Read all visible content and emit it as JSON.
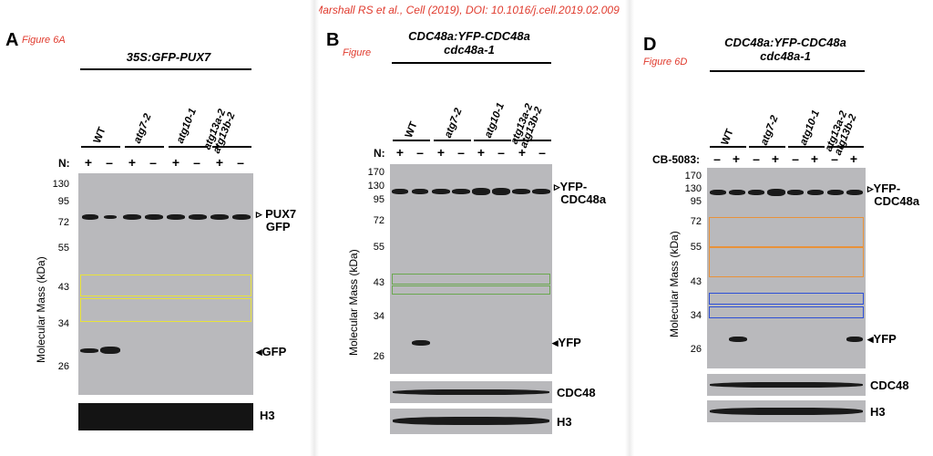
{
  "citation": "Marshall RS et al., Cell (2019), DOI: 10.1016/j.cell.2019.02.009",
  "panels": {
    "a": {
      "letter": "A",
      "fig_ref": "Figure 6A",
      "construct": "35S:GFP-PUX7",
      "treatment_label": "N:",
      "signs": [
        "+",
        "–",
        "+",
        "–",
        "+",
        "–",
        "+",
        "–"
      ],
      "genotypes": [
        "WT",
        "atg7-2",
        "atg10-1",
        "atg13a-2 atg13b-2"
      ],
      "y_axis": "Molecular Mass (kDa)",
      "mw": [
        "130",
        "95",
        "72",
        "55",
        "43",
        "34",
        "26"
      ],
      "labels": {
        "top1": "PUX7",
        "top2": "GFP",
        "free": "GFP",
        "loading": "H3"
      }
    },
    "b": {
      "letter": "B",
      "fig_ref": "Figure",
      "construct_line1": "CDC48a:YFP-CDC48a",
      "construct_line2": "cdc48a-1",
      "treatment_label": "N:",
      "signs": [
        "+",
        "–",
        "+",
        "–",
        "+",
        "–",
        "+",
        "–"
      ],
      "genotypes": [
        "WT",
        "atg7-2",
        "atg10-1",
        "atg13a-2 atg13b-2"
      ],
      "y_axis": "Molecular Mass (kDa)",
      "mw": [
        "170",
        "130",
        "95",
        "72",
        "55",
        "43",
        "34",
        "26"
      ],
      "labels": {
        "top1": "YFP-",
        "top2": "CDC48a",
        "free": "YFP",
        "loading1": "CDC48",
        "loading2": "H3"
      }
    },
    "d": {
      "letter": "D",
      "fig_ref": "Figure 6D",
      "construct_line1": "CDC48a:YFP-CDC48a",
      "construct_line2": "cdc48a-1",
      "treatment_label": "CB-5083:",
      "signs": [
        "–",
        "+",
        "–",
        "+",
        "–",
        "+",
        "–",
        "+"
      ],
      "genotypes": [
        "WT",
        "atg7-2",
        "atg10-1",
        "atg13a-2 atg13b-2"
      ],
      "y_axis": "Molecular Mass (kDa)",
      "mw": [
        "170",
        "130",
        "95",
        "72",
        "55",
        "43",
        "34",
        "26"
      ],
      "labels": {
        "top1": "YFP-",
        "top2": "CDC48a",
        "free": "YFP",
        "loading1": "CDC48",
        "loading2": "H3"
      }
    }
  },
  "colors": {
    "citation": "#e03b2e",
    "box_yellow": "#e8e23a",
    "box_green": "#6aa84f",
    "box_orange": "#e8923a",
    "box_blue": "#2d4fd6"
  }
}
